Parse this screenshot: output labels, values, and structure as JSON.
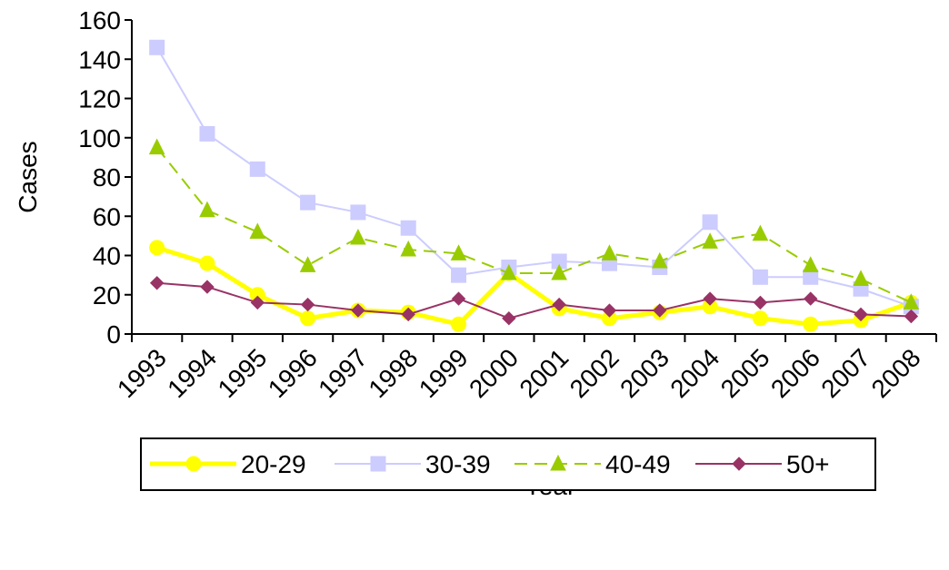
{
  "chart_data": {
    "type": "line",
    "x_label": "Year",
    "y_label": "Cases",
    "categories": [
      "1993",
      "1994",
      "1995",
      "1996",
      "1997",
      "1998",
      "1999",
      "2000",
      "2001",
      "2002",
      "2003",
      "2004",
      "2005",
      "2006",
      "2007",
      "2008"
    ],
    "series": [
      {
        "name": "20-29",
        "color": "#ffff00",
        "marker": "circle",
        "dashed": false,
        "width": 5,
        "values": [
          44,
          36,
          20,
          8,
          12,
          11,
          5,
          31,
          13,
          8,
          11,
          14,
          8,
          5,
          7,
          16
        ]
      },
      {
        "name": "30-39",
        "color": "#ccccff",
        "marker": "square",
        "dashed": false,
        "width": 2,
        "values": [
          146,
          102,
          84,
          67,
          62,
          54,
          30,
          34,
          37,
          36,
          34,
          57,
          29,
          29,
          23,
          14
        ]
      },
      {
        "name": "40-49",
        "color": "#99cc00",
        "marker": "triangle",
        "dashed": true,
        "width": 2,
        "values": [
          95,
          63,
          52,
          35,
          49,
          43,
          41,
          31,
          31,
          41,
          37,
          47,
          51,
          35,
          28,
          16
        ]
      },
      {
        "name": "50+",
        "color": "#993366",
        "marker": "diamond",
        "dashed": false,
        "width": 2,
        "values": [
          26,
          24,
          16,
          15,
          12,
          10,
          18,
          8,
          15,
          12,
          12,
          18,
          16,
          18,
          10,
          9
        ]
      }
    ],
    "ylim": [
      0,
      160
    ],
    "yticks": [
      0,
      20,
      40,
      60,
      80,
      100,
      120,
      140,
      160
    ],
    "grid": false,
    "legend": "bottom"
  }
}
